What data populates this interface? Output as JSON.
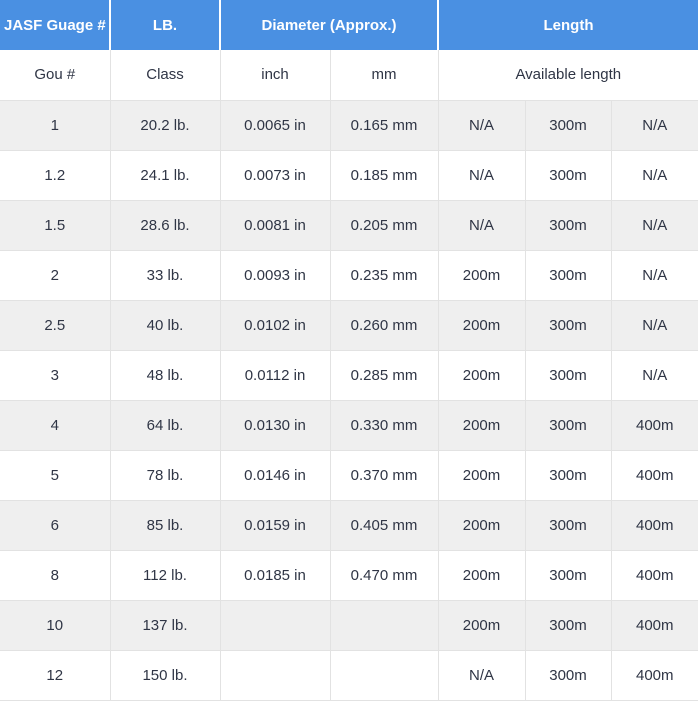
{
  "chart_data": {
    "type": "table",
    "header_row1": [
      {
        "label": "JASF Guage #",
        "colspan": 1
      },
      {
        "label": "LB.",
        "colspan": 1
      },
      {
        "label": "Diameter (Approx.)",
        "colspan": 2
      },
      {
        "label": "Length",
        "colspan": 3
      }
    ],
    "header_row2": [
      {
        "label": "Gou #",
        "colspan": 1
      },
      {
        "label": "Class",
        "colspan": 1
      },
      {
        "label": "inch",
        "colspan": 1
      },
      {
        "label": "mm",
        "colspan": 1
      },
      {
        "label": "Available length",
        "colspan": 3
      }
    ],
    "rows": [
      [
        "1",
        "20.2 lb.",
        "0.0065 in",
        "0.165 mm",
        "N/A",
        "300m",
        "N/A"
      ],
      [
        "1.2",
        "24.1 lb.",
        "0.0073 in",
        "0.185 mm",
        "N/A",
        "300m",
        "N/A"
      ],
      [
        "1.5",
        "28.6 lb.",
        "0.0081 in",
        "0.205 mm",
        "N/A",
        "300m",
        "N/A"
      ],
      [
        "2",
        "33 lb.",
        "0.0093 in",
        "0.235 mm",
        "200m",
        "300m",
        "N/A"
      ],
      [
        "2.5",
        "40 lb.",
        "0.0102 in",
        "0.260 mm",
        "200m",
        "300m",
        "N/A"
      ],
      [
        "3",
        "48 lb.",
        "0.0112 in",
        "0.285 mm",
        "200m",
        "300m",
        "N/A"
      ],
      [
        "4",
        "64 lb.",
        "0.0130 in",
        "0.330 mm",
        "200m",
        "300m",
        "400m"
      ],
      [
        "5",
        "78 lb.",
        "0.0146 in",
        "0.370 mm",
        "200m",
        "300m",
        "400m"
      ],
      [
        "6",
        "85 lb.",
        "0.0159 in",
        "0.405 mm",
        "200m",
        "300m",
        "400m"
      ],
      [
        "8",
        "112 lb.",
        "0.0185 in",
        "0.470 mm",
        "200m",
        "300m",
        "400m"
      ],
      [
        "10",
        "137 lb.",
        "",
        "",
        "200m",
        "300m",
        "400m"
      ],
      [
        "12",
        "150 lb.",
        "",
        "",
        "N/A",
        "300m",
        "400m"
      ]
    ],
    "colors": {
      "header_bg": "#4a90e2",
      "header_text": "#ffffff",
      "stripe_row_bg": "#efefef",
      "white_row_bg": "#ffffff",
      "body_text": "#2f3545",
      "border": "#e2e2e2"
    }
  }
}
